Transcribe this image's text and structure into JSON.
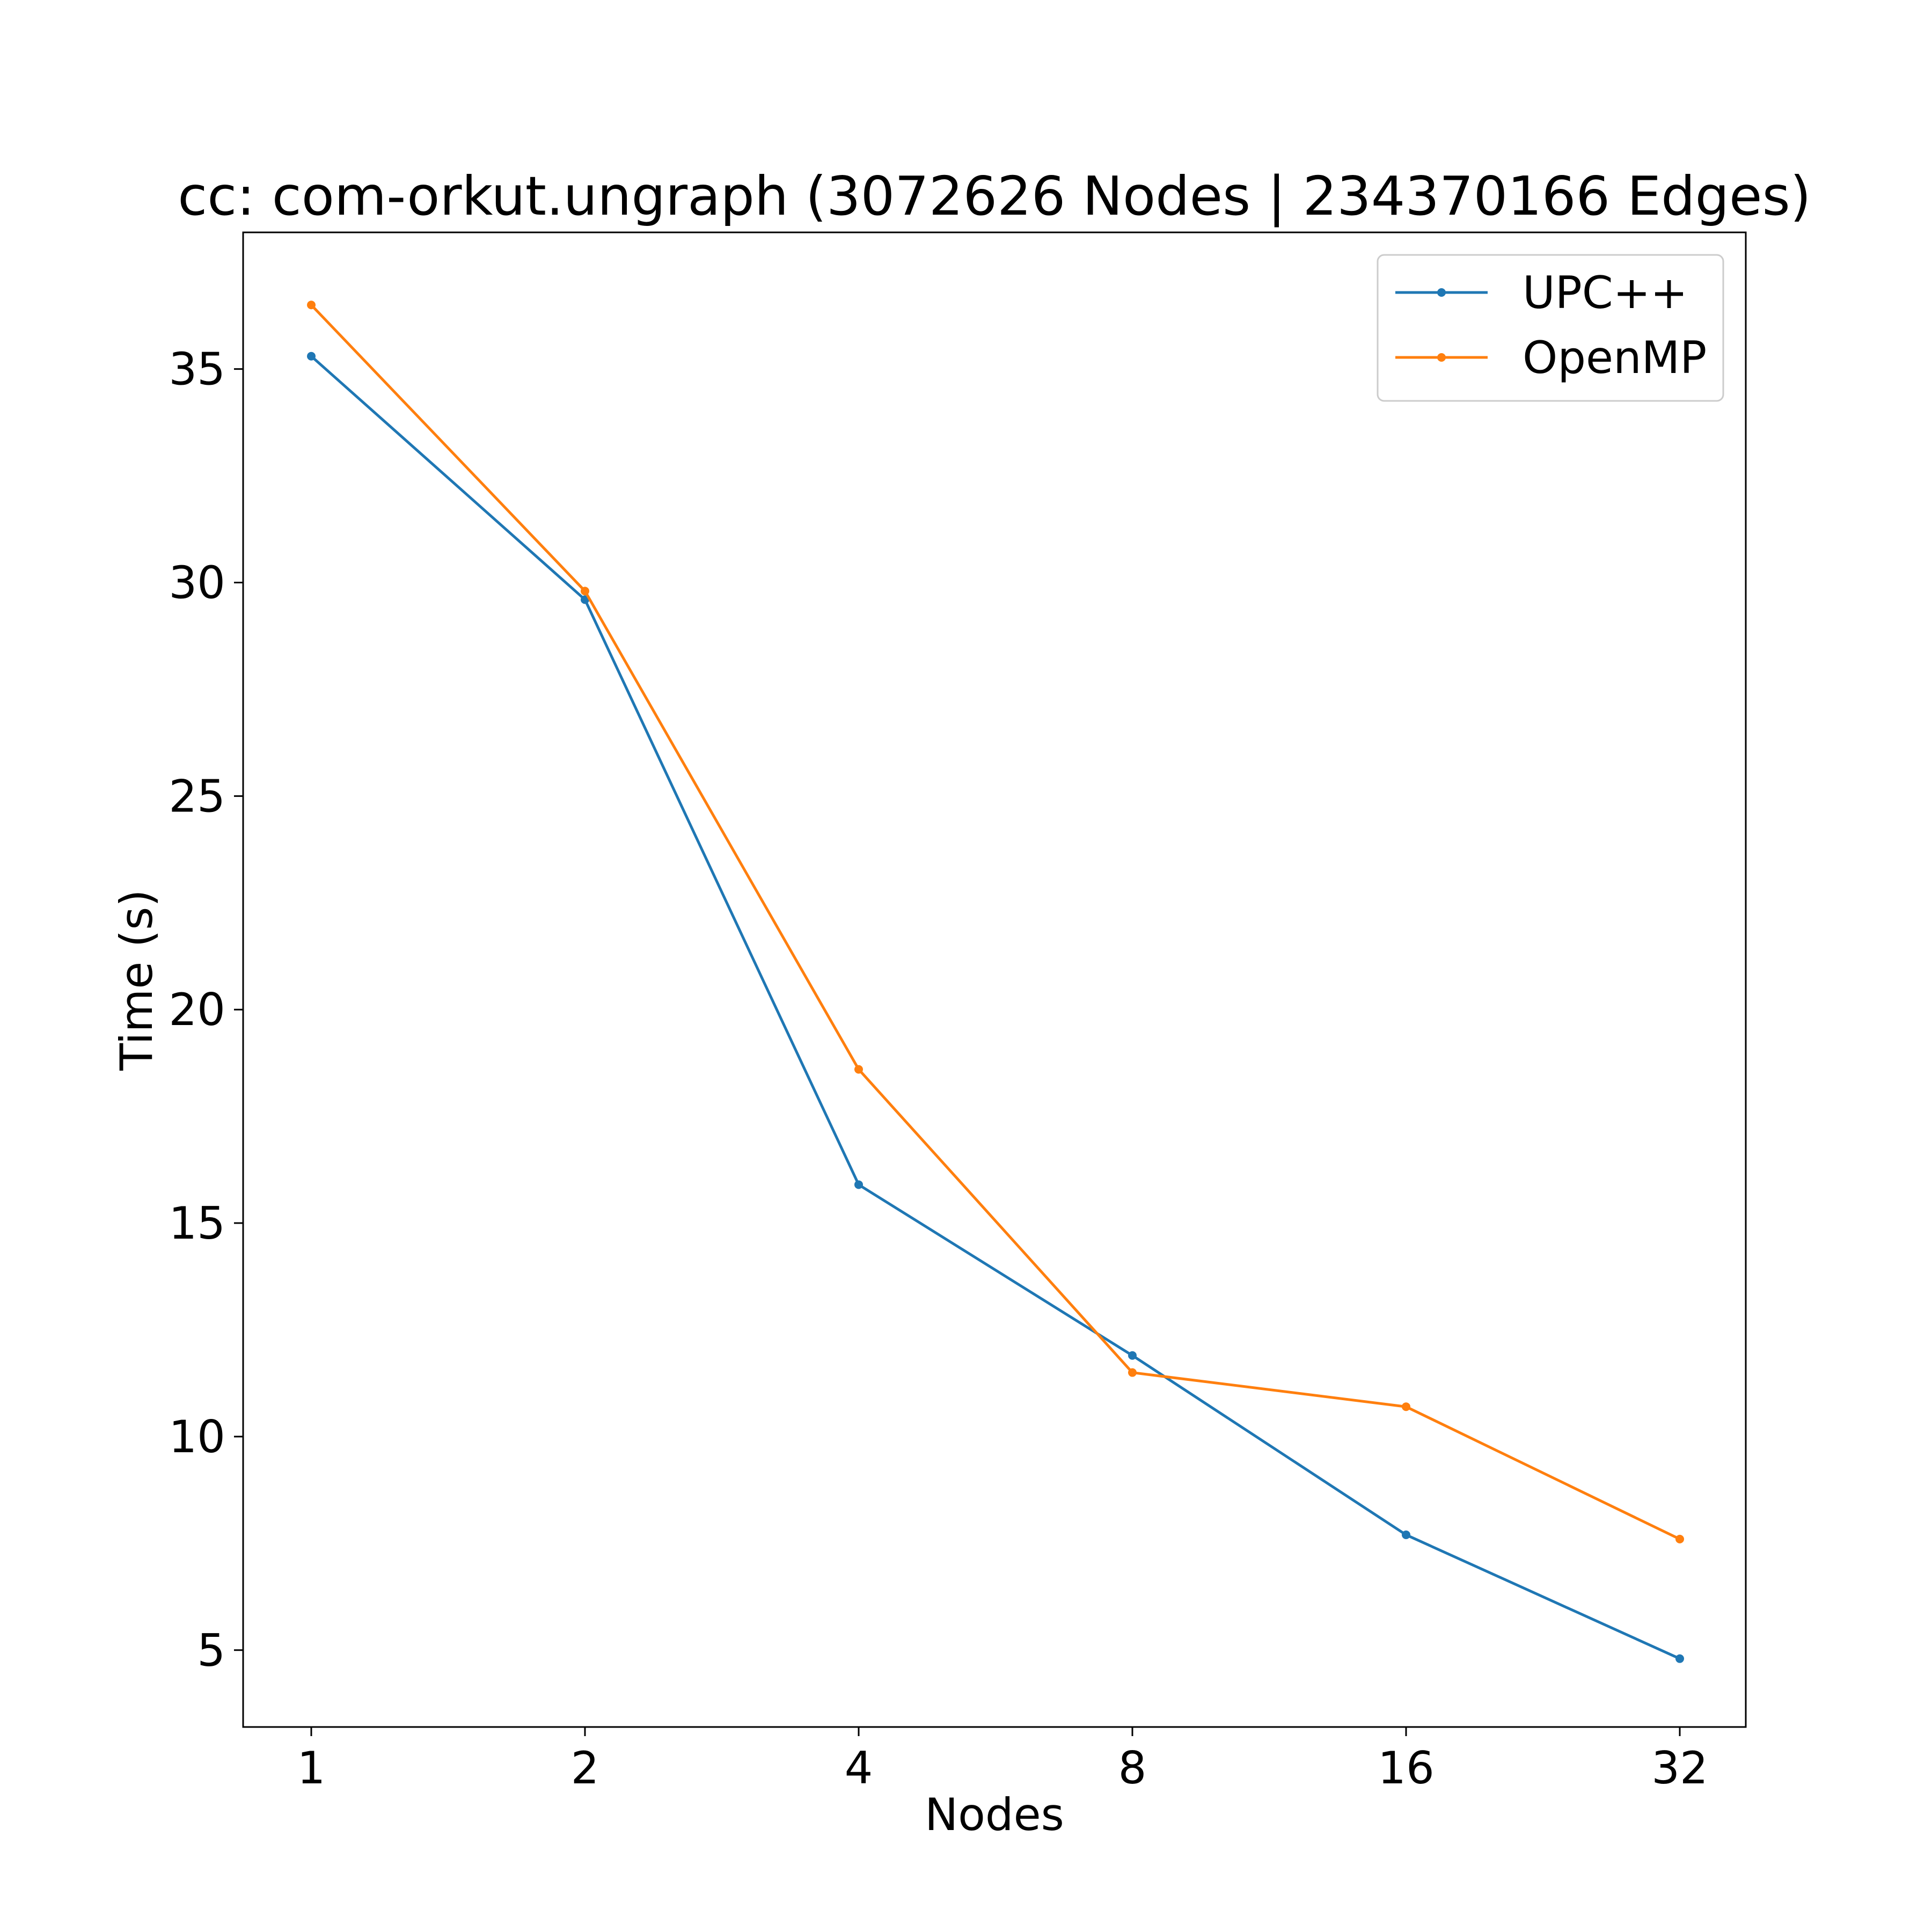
{
  "chart_data": {
    "type": "line",
    "title": "cc: com-orkut.ungraph (3072626 Nodes | 234370166 Edges)",
    "xlabel": "Nodes",
    "ylabel": "Time (s)",
    "categories": [
      "1",
      "2",
      "4",
      "8",
      "16",
      "32"
    ],
    "yticks": [
      "5",
      "10",
      "15",
      "20",
      "25",
      "30",
      "35"
    ],
    "ylim": [
      3.2,
      38.2
    ],
    "grid": false,
    "legend_position": "top-right",
    "series": [
      {
        "name": "UPC++",
        "color": "#1f77b4",
        "values": [
          35.3,
          29.6,
          15.9,
          11.9,
          7.7,
          4.8
        ]
      },
      {
        "name": "OpenMP",
        "color": "#ff7f0e",
        "values": [
          36.5,
          29.8,
          18.6,
          11.5,
          10.7,
          7.6
        ]
      }
    ]
  }
}
